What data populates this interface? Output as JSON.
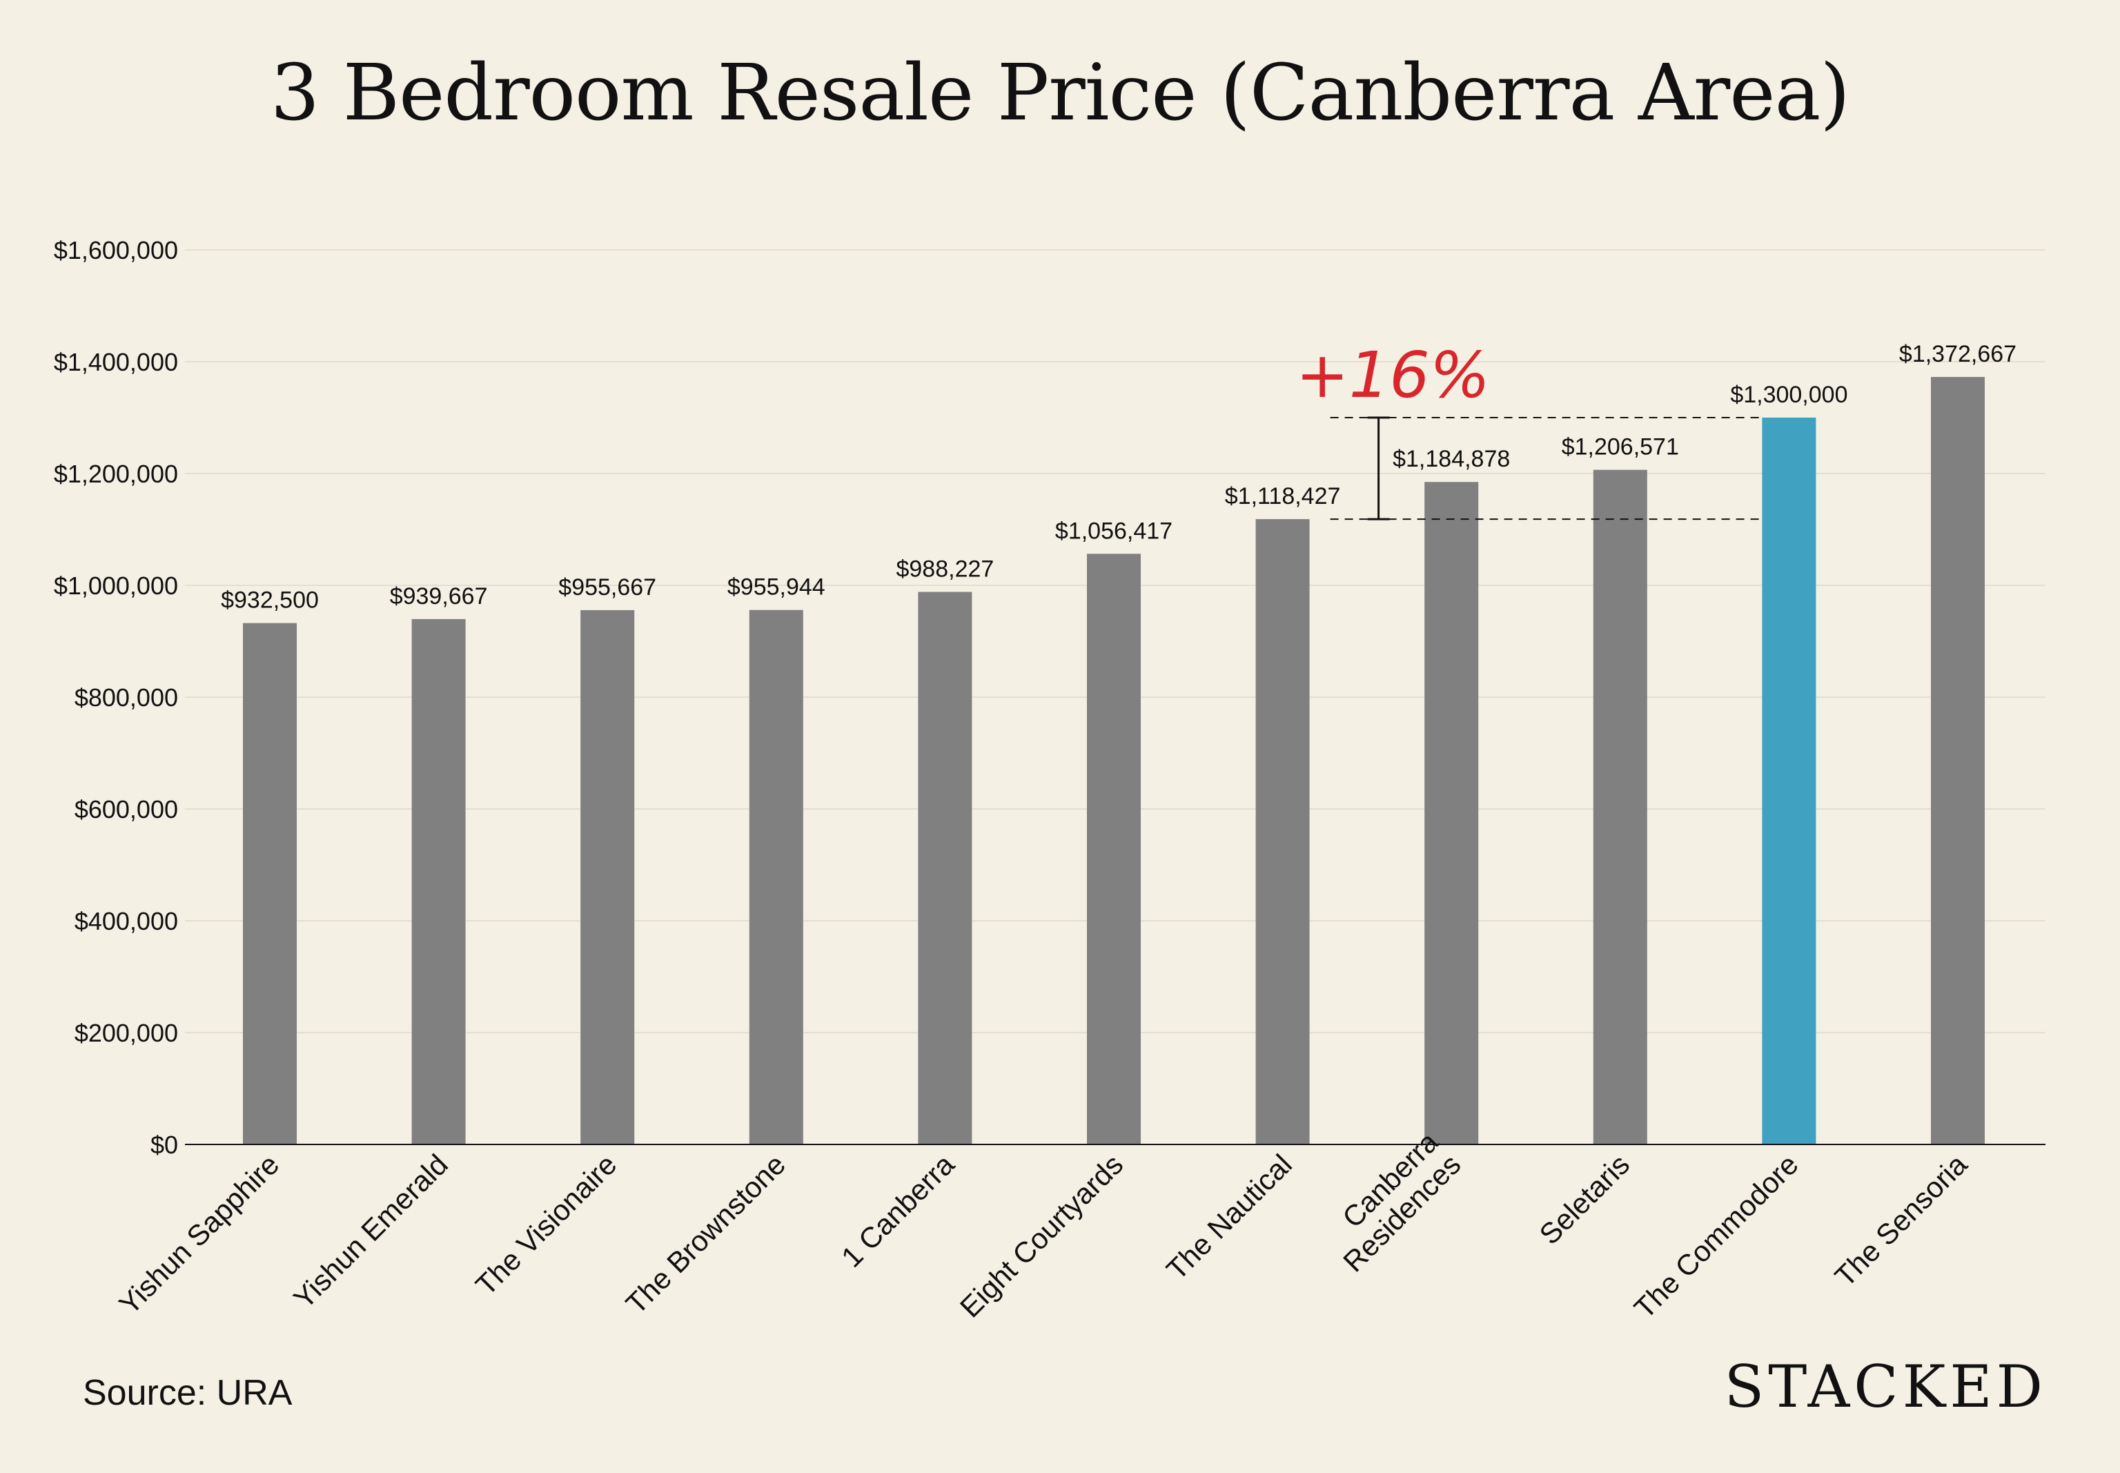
{
  "chart_data": {
    "type": "bar",
    "title": "3 Bedroom Resale Price (Canberra Area)",
    "categories": [
      "Yishun Sapphire",
      "Yishun Emerald",
      "The Visionaire",
      "The Brownstone",
      "1 Canberra",
      "Eight Courtyards",
      "The Nautical",
      "Canberra Residences",
      "Seletaris",
      "The Commodore",
      "The Sensoria"
    ],
    "values": [
      932500,
      939667,
      955667,
      955944,
      988227,
      1056417,
      1118427,
      1184878,
      1206571,
      1300000,
      1372667
    ],
    "value_labels": [
      "$932,500",
      "$939,667",
      "$955,667",
      "$955,944",
      "$988,227",
      "$1,056,417",
      "$1,118,427",
      "$1,184,878",
      "$1,206,571",
      "$1,300,000",
      "$1,372,667"
    ],
    "highlight_category": "The Commodore",
    "colors": {
      "bar": "#808080",
      "highlight": "#41a1c0",
      "annotation": "#d9262c",
      "grid": "#e3ded1",
      "text": "#111111"
    },
    "ylim": [
      0,
      1600000
    ],
    "yticks": [
      0,
      200000,
      400000,
      600000,
      800000,
      1000000,
      1200000,
      1400000,
      1600000
    ],
    "ytick_labels": [
      "$0",
      "$200,000",
      "$400,000",
      "$600,000",
      "$800,000",
      "$1,000,000",
      "$1,200,000",
      "$1,400,000",
      "$1,600,000"
    ],
    "xlabel": "",
    "ylabel": "",
    "grid": true,
    "legend": "none",
    "annotation": {
      "text": "+16%",
      "from_category": "The Nautical",
      "to_category": "The Commodore"
    }
  },
  "source": "Source: URA",
  "brand": "STACKED"
}
